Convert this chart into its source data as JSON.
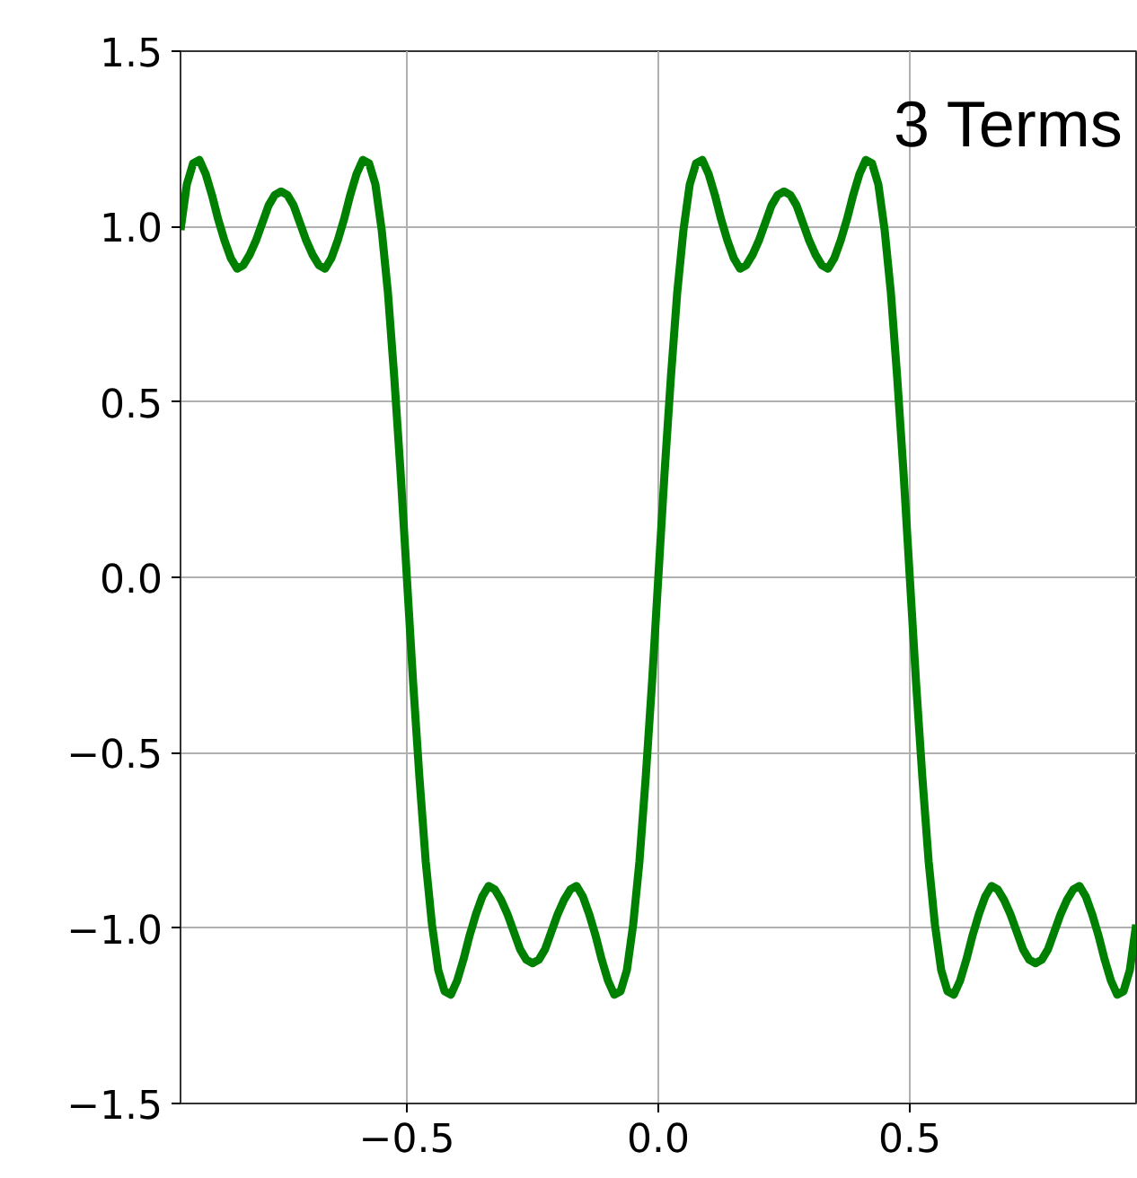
{
  "chart_data": {
    "type": "line",
    "annotations": [
      "3 Terms"
    ],
    "x": [
      -0.95,
      -0.9375,
      -0.925,
      -0.9125,
      -0.9,
      -0.8875,
      -0.875,
      -0.8625,
      -0.85,
      -0.8375,
      -0.825,
      -0.8125,
      -0.8,
      -0.7875,
      -0.775,
      -0.7625,
      -0.75,
      -0.7375,
      -0.725,
      -0.7125,
      -0.7,
      -0.6875,
      -0.675,
      -0.6625,
      -0.65,
      -0.6375,
      -0.625,
      -0.6125,
      -0.6,
      -0.5875,
      -0.575,
      -0.5625,
      -0.55,
      -0.5375,
      -0.525,
      -0.5125,
      -0.5,
      -0.4875,
      -0.475,
      -0.4625,
      -0.45,
      -0.4375,
      -0.425,
      -0.4125,
      -0.4,
      -0.3875,
      -0.375,
      -0.3625,
      -0.35,
      -0.3375,
      -0.325,
      -0.3125,
      -0.3,
      -0.2875,
      -0.275,
      -0.2625,
      -0.25,
      -0.2375,
      -0.225,
      -0.2125,
      -0.2,
      -0.1875,
      -0.175,
      -0.1625,
      -0.15,
      -0.1375,
      -0.125,
      -0.1125,
      -0.1,
      -0.0875,
      -0.075,
      -0.0625,
      -0.05,
      -0.0375,
      -0.025,
      -0.0125,
      0,
      0.0125,
      0.025,
      0.0375,
      0.05,
      0.0625,
      0.075,
      0.0875,
      0.1,
      0.1125,
      0.125,
      0.1375,
      0.15,
      0.1625,
      0.175,
      0.1875,
      0.2,
      0.2125,
      0.225,
      0.2375,
      0.25,
      0.2625,
      0.275,
      0.2875,
      0.3,
      0.3125,
      0.325,
      0.3375,
      0.35,
      0.3625,
      0.375,
      0.3875,
      0.4,
      0.4125,
      0.425,
      0.4375,
      0.45,
      0.4625,
      0.475,
      0.4875,
      0.5,
      0.5125,
      0.525,
      0.5375,
      0.55,
      0.5625,
      0.575,
      0.5875,
      0.6,
      0.6125,
      0.625,
      0.6375,
      0.65,
      0.6625,
      0.675,
      0.6875,
      0.7,
      0.7125,
      0.725,
      0.7375,
      0.75,
      0.7625,
      0.775,
      0.7875,
      0.8,
      0.8125,
      0.825,
      0.8375,
      0.85,
      0.8625,
      0.875,
      0.8875,
      0.9,
      0.9125,
      0.925,
      0.9375,
      0.95
    ],
    "series": [
      {
        "color": "#008000",
        "values": [
          0.99,
          1.12,
          1.18,
          1.19,
          1.15,
          1.09,
          1.02,
          0.96,
          0.91,
          0.88,
          0.89,
          0.92,
          0.96,
          1.01,
          1.06,
          1.09,
          1.1,
          1.09,
          1.06,
          1.01,
          0.96,
          0.92,
          0.89,
          0.88,
          0.91,
          0.96,
          1.02,
          1.09,
          1.15,
          1.19,
          1.18,
          1.12,
          0.99,
          0.81,
          0.57,
          0.3,
          0,
          -0.3,
          -0.57,
          -0.81,
          -0.99,
          -1.12,
          -1.18,
          -1.19,
          -1.15,
          -1.09,
          -1.02,
          -0.96,
          -0.91,
          -0.88,
          -0.89,
          -0.92,
          -0.96,
          -1.01,
          -1.06,
          -1.09,
          -1.1,
          -1.09,
          -1.06,
          -1.01,
          -0.96,
          -0.92,
          -0.89,
          -0.88,
          -0.91,
          -0.96,
          -1.02,
          -1.09,
          -1.15,
          -1.19,
          -1.18,
          -1.12,
          -0.99,
          -0.81,
          -0.57,
          -0.3,
          0,
          0.3,
          0.57,
          0.81,
          0.99,
          1.12,
          1.18,
          1.19,
          1.15,
          1.09,
          1.02,
          0.96,
          0.91,
          0.88,
          0.89,
          0.92,
          0.96,
          1.01,
          1.06,
          1.09,
          1.1,
          1.09,
          1.06,
          1.01,
          0.96,
          0.92,
          0.89,
          0.88,
          0.91,
          0.96,
          1.02,
          1.09,
          1.15,
          1.19,
          1.18,
          1.12,
          0.99,
          0.81,
          0.57,
          0.3,
          0,
          -0.3,
          -0.57,
          -0.81,
          -0.99,
          -1.12,
          -1.18,
          -1.19,
          -1.15,
          -1.09,
          -1.02,
          -0.96,
          -0.91,
          -0.88,
          -0.89,
          -0.92,
          -0.96,
          -1.01,
          -1.06,
          -1.09,
          -1.1,
          -1.09,
          -1.06,
          -1.01,
          -0.96,
          -0.92,
          -0.89,
          -0.88,
          -0.91,
          -0.96,
          -1.02,
          -1.09,
          -1.15,
          -1.19,
          -1.18,
          -1.12,
          -0.99
        ]
      }
    ],
    "xlim": [
      -0.95,
      0.95
    ],
    "ylim": [
      -1.5,
      1.5
    ],
    "xticks": [
      {
        "value": -0.5,
        "label": "−0.5"
      },
      {
        "value": 0,
        "label": "0.0"
      },
      {
        "value": 0.5,
        "label": "0.5"
      }
    ],
    "yticks": [
      {
        "value": -1.5,
        "label": "−1.5"
      },
      {
        "value": -1.0,
        "label": "−1.0"
      },
      {
        "value": -0.5,
        "label": "−0.5"
      },
      {
        "value": 0,
        "label": "0.0"
      },
      {
        "value": 0.5,
        "label": "0.5"
      },
      {
        "value": 1.0,
        "label": "1.0"
      },
      {
        "value": 1.5,
        "label": "1.5"
      }
    ],
    "grid": true,
    "marker": "none",
    "line_style": "solid"
  }
}
